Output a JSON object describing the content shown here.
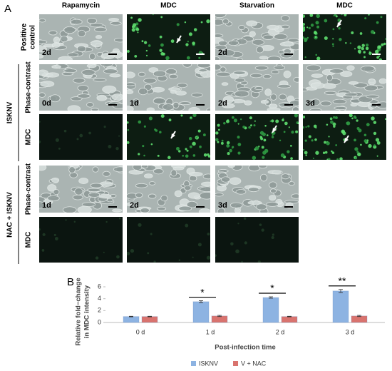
{
  "panel_a": {
    "label": "A",
    "columns": [
      "Rapamycin",
      "MDC",
      "Starvation",
      "MDC"
    ],
    "groups": [
      "ISKNV",
      "NAC + ISKNV"
    ],
    "rows": [
      {
        "label": [
          "Positive",
          "control"
        ],
        "images": [
          "2d",
          null,
          "2d",
          null
        ]
      },
      {
        "label": [
          "Phase-contrast"
        ],
        "images": [
          "0d",
          "1d",
          "2d",
          "3d"
        ]
      },
      {
        "label": [
          "MDC"
        ],
        "images": [
          null,
          null,
          null,
          null
        ]
      },
      {
        "label": [
          "Phase-contrast"
        ],
        "images": [
          "1d",
          "2d",
          "3d"
        ]
      },
      {
        "label": [
          "MDC"
        ],
        "images": [
          null,
          null,
          null
        ]
      }
    ]
  },
  "chart_data": {
    "type": "bar",
    "panel_label": "B",
    "y_label": [
      "Relative fold−change",
      "in MDC intensity"
    ],
    "x_label": "Post-infection time",
    "categories": [
      "0 d",
      "1 d",
      "2 d",
      "3 d"
    ],
    "series": [
      {
        "name": "ISKNV",
        "color": "#8db3e2",
        "values": [
          1.0,
          3.5,
          4.2,
          5.3
        ],
        "errors": [
          0.05,
          0.15,
          0.12,
          0.25
        ]
      },
      {
        "name": "V + NAC",
        "color": "#d9736e",
        "values": [
          1.0,
          1.1,
          1.0,
          1.1
        ],
        "errors": [
          0.05,
          0.1,
          0.05,
          0.1
        ]
      }
    ],
    "annotations": [
      null,
      "*",
      "*",
      "**"
    ],
    "ylim": [
      0,
      6
    ],
    "yticks": [
      0,
      2,
      4,
      6
    ],
    "grid": false,
    "legend": "bottom"
  }
}
